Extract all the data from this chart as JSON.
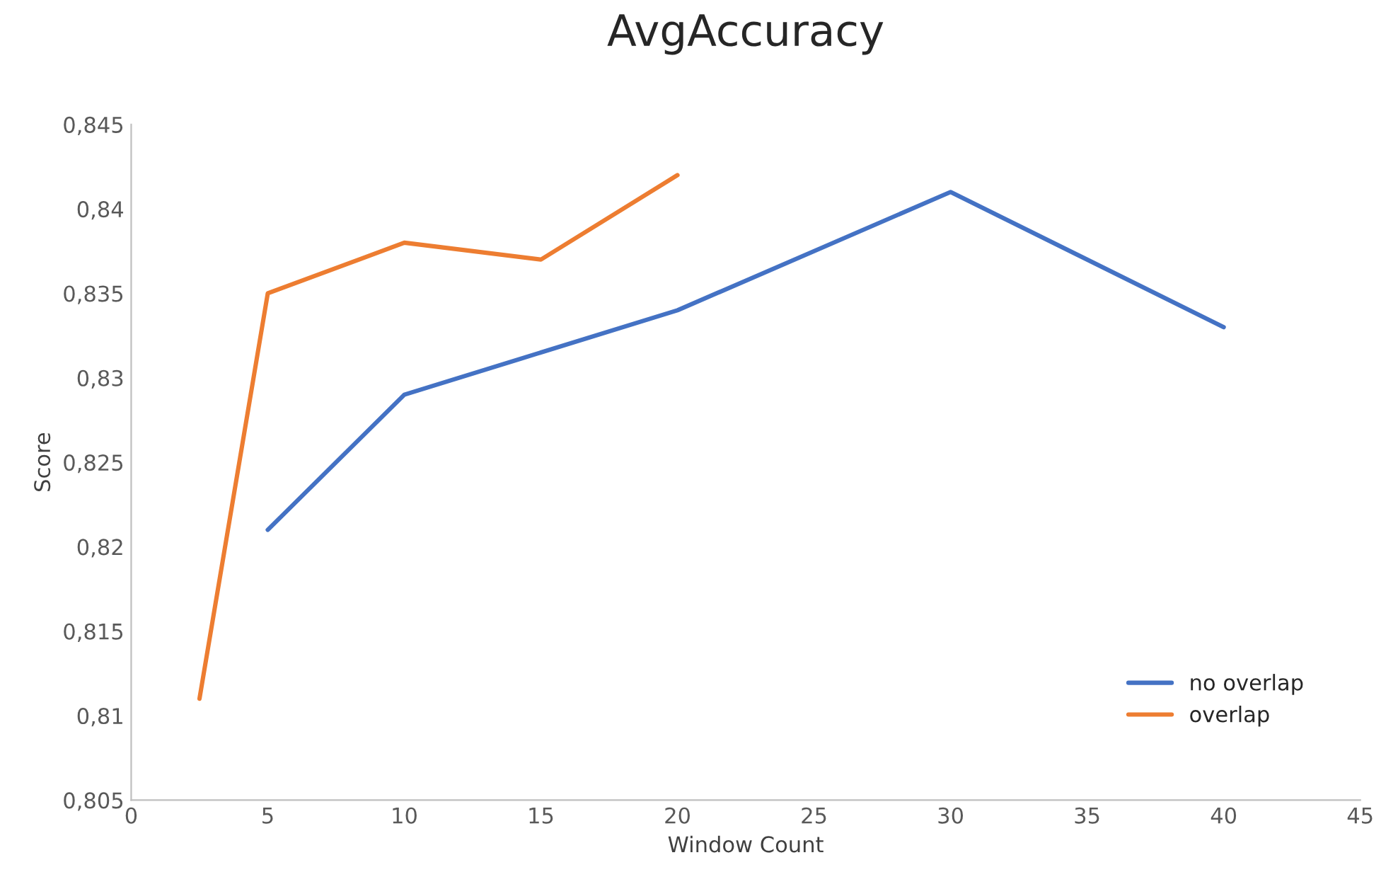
{
  "chart_data": {
    "type": "line",
    "title": "AvgAccuracy",
    "xlabel": "Window Count",
    "ylabel": "Score",
    "series": [
      {
        "name": "no overlap",
        "color": "#4472c4",
        "x": [
          5,
          10,
          20,
          30,
          40
        ],
        "values": [
          0.821,
          0.829,
          0.834,
          0.841,
          0.833
        ]
      },
      {
        "name": "overlap",
        "color": "#ed7d31",
        "x": [
          2.5,
          5,
          10,
          15,
          20
        ],
        "values": [
          0.811,
          0.835,
          0.838,
          0.837,
          0.842
        ]
      }
    ],
    "xlim": [
      0,
      45
    ],
    "xticks": [
      0,
      5,
      10,
      15,
      20,
      25,
      30,
      35,
      40,
      45
    ],
    "ylim": [
      0.805,
      0.845
    ],
    "yticks": [
      {
        "value": 0.805,
        "label": "0,805"
      },
      {
        "value": 0.81,
        "label": "0,81"
      },
      {
        "value": 0.815,
        "label": "0,815"
      },
      {
        "value": 0.82,
        "label": "0,82"
      },
      {
        "value": 0.825,
        "label": "0,825"
      },
      {
        "value": 0.83,
        "label": "0,83"
      },
      {
        "value": 0.835,
        "label": "0,835"
      },
      {
        "value": 0.84,
        "label": "0,84"
      },
      {
        "value": 0.845,
        "label": "0,845"
      }
    ],
    "grid": false,
    "legend": "bottom right",
    "marker": "none",
    "line_style": "solid"
  }
}
